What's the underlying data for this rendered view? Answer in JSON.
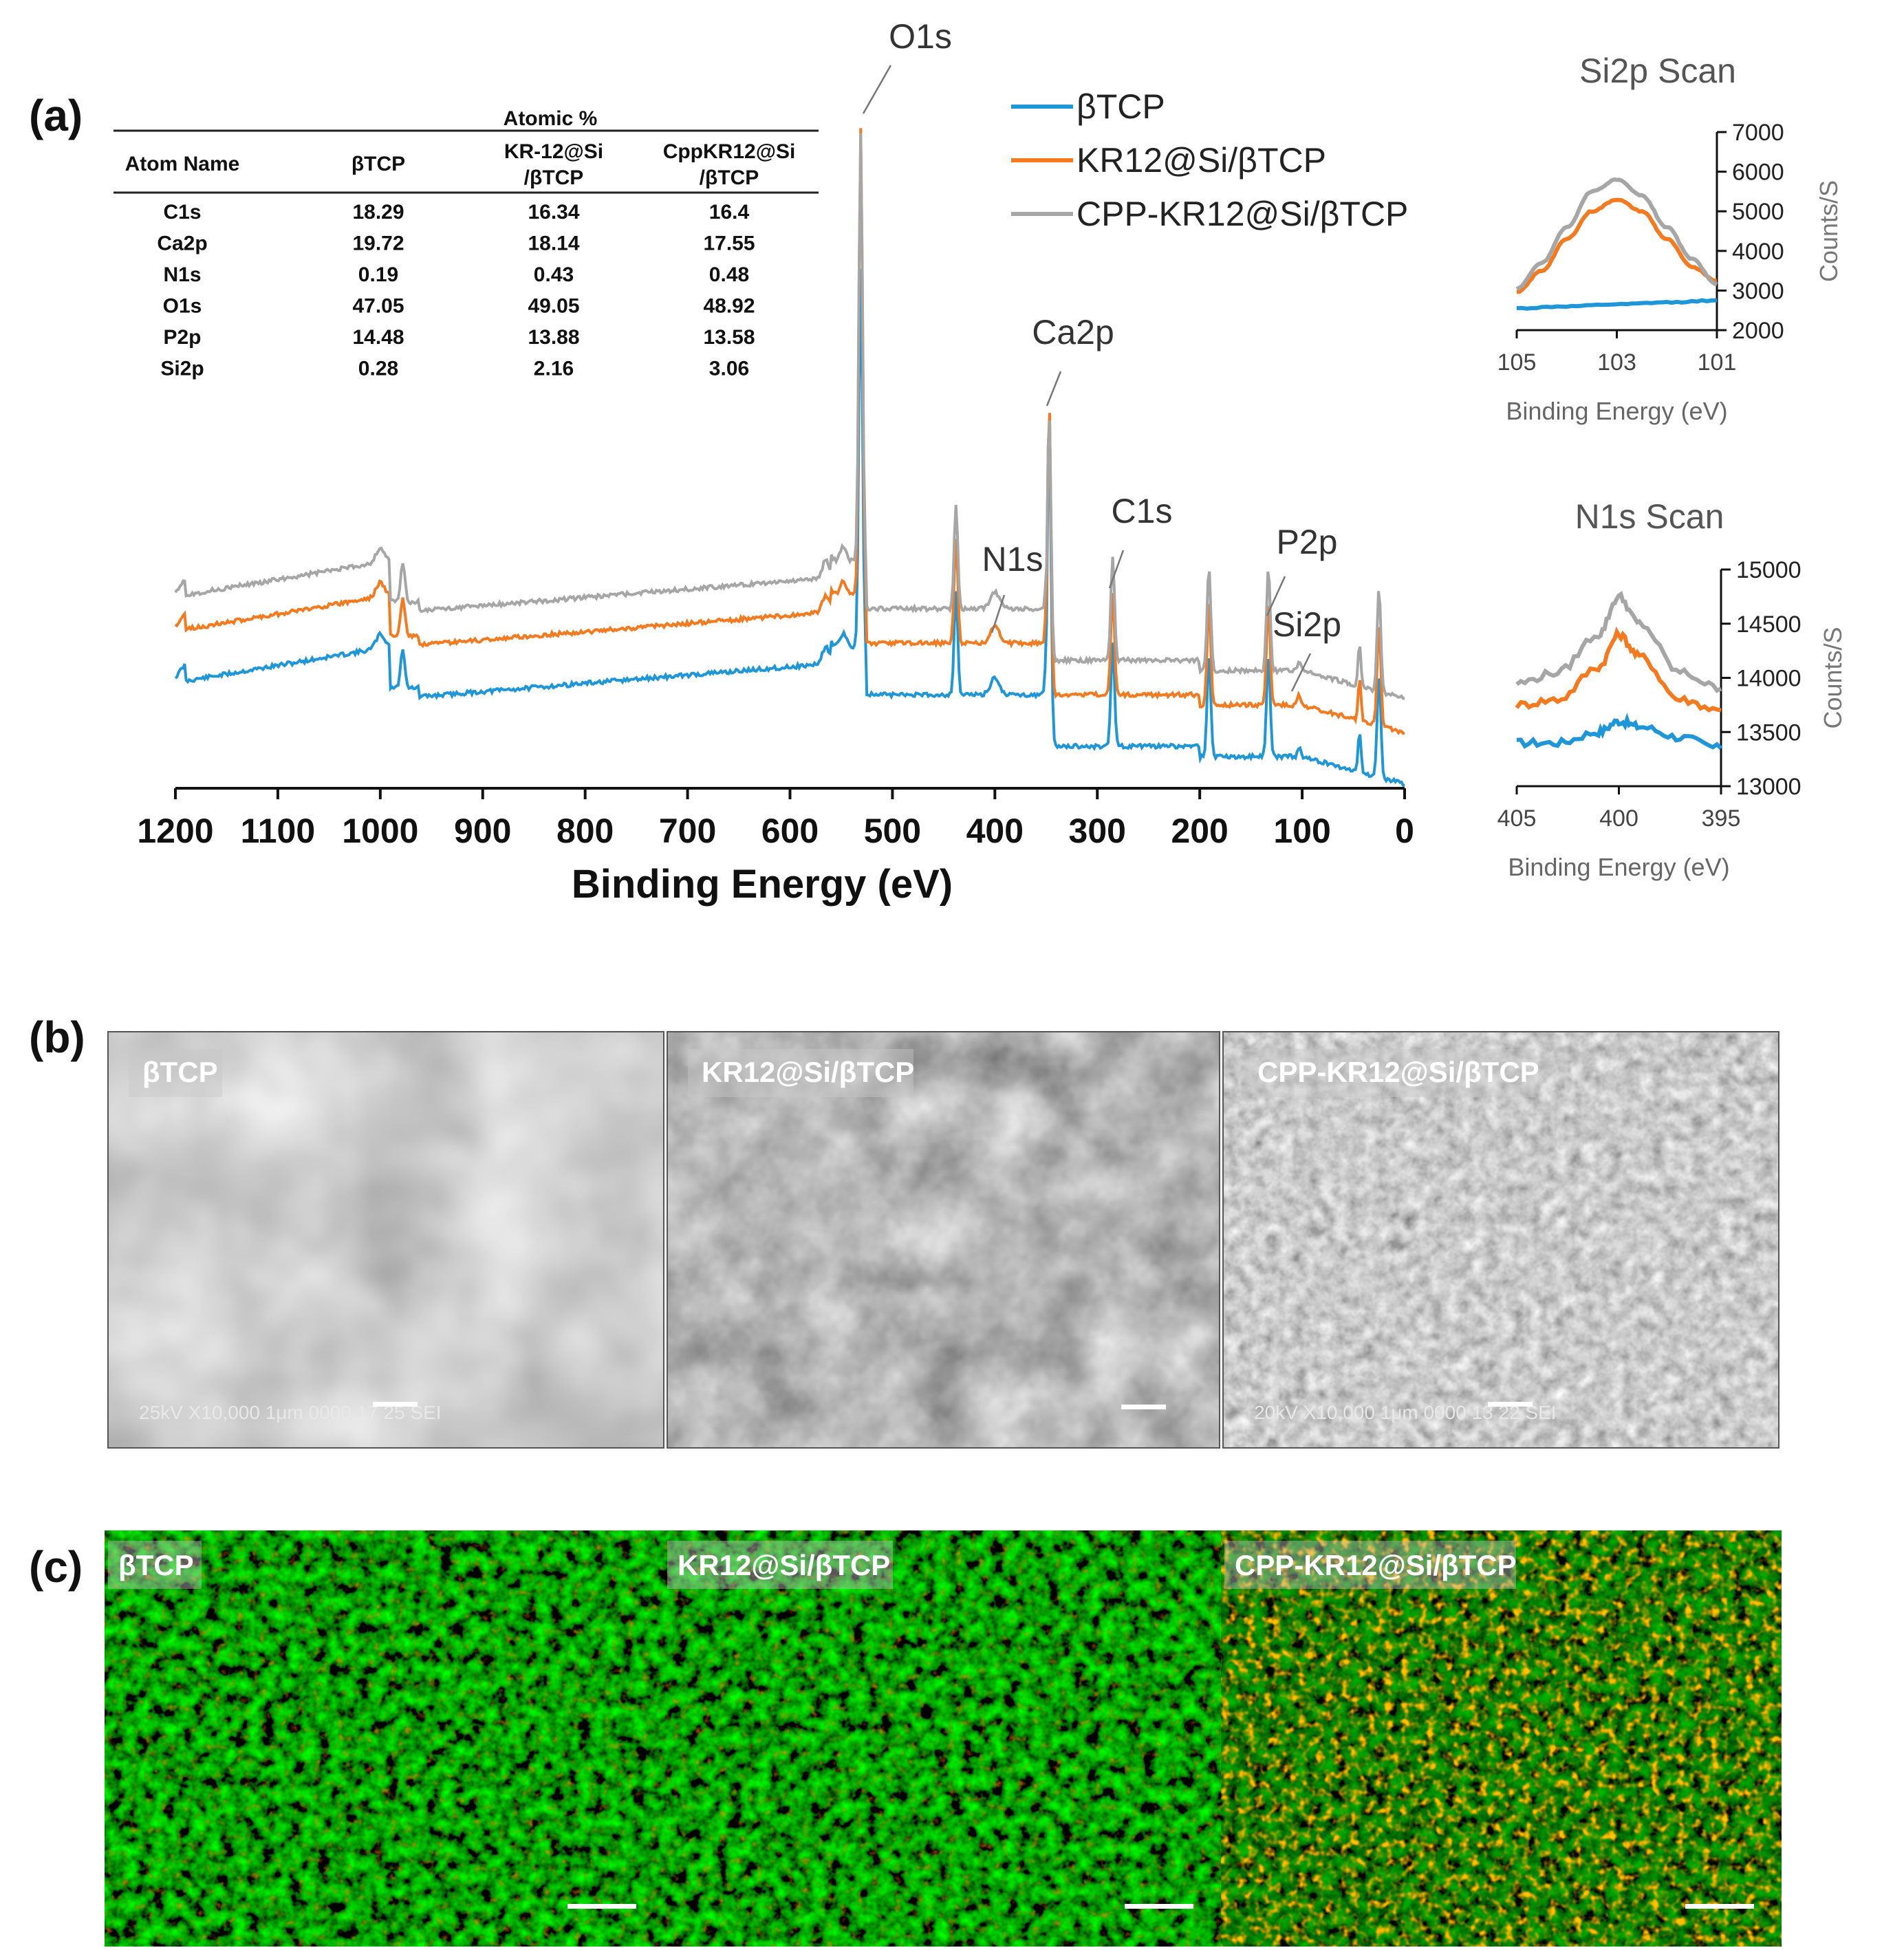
{
  "panels": {
    "a": "(a)",
    "b": "(b)",
    "c": "(c)"
  },
  "table": {
    "group_header": "Atomic %",
    "headers": [
      "Atom Name",
      "βTCP",
      "KR-12@Si\n/βTCP",
      "CppKR12@Si\n/βTCP"
    ],
    "rows": [
      [
        "C1s",
        "18.29",
        "16.34",
        "16.4"
      ],
      [
        "Ca2p",
        "19.72",
        "18.14",
        "17.55"
      ],
      [
        "N1s",
        "0.19",
        "0.43",
        "0.48"
      ],
      [
        "O1s",
        "47.05",
        "49.05",
        "48.92"
      ],
      [
        "P2p",
        "14.48",
        "13.88",
        "13.58"
      ],
      [
        "Si2p",
        "0.28",
        "2.16",
        "3.06"
      ]
    ]
  },
  "colors": {
    "btcp": "#1f96d8",
    "kr12": "#f47a20",
    "cpp": "#a6a6a6"
  },
  "chart_data": [
    {
      "type": "line",
      "xlabel": "Binding Energy (eV)",
      "ylabel": "",
      "xlim": [
        1200,
        0
      ],
      "x_reversed": true,
      "xticks": [
        1200,
        1100,
        1000,
        900,
        800,
        700,
        600,
        500,
        400,
        300,
        200,
        100,
        0
      ],
      "legend_position": "top-center",
      "series": [
        {
          "name": "βTCP",
          "color": "#1f96d8"
        },
        {
          "name": "KR12@Si/βTCP",
          "color": "#f47a20"
        },
        {
          "name": "CPP-KR12@Si/βTCP",
          "color": "#a6a6a6"
        }
      ],
      "peaks": [
        {
          "label": "O1s",
          "x": 531
        },
        {
          "label": "Ca2p",
          "x": 347
        },
        {
          "label": "N1s",
          "x": 400
        },
        {
          "label": "C1s",
          "x": 285
        },
        {
          "label": "P2p",
          "x": 133
        },
        {
          "label": "Si2p",
          "x": 103
        }
      ]
    },
    {
      "type": "line",
      "title": "Si2p Scan",
      "xlabel": "Binding Energy (eV)",
      "ylabel": "Counts/S",
      "xlim": [
        105,
        101
      ],
      "x_reversed": true,
      "ylim": [
        2000,
        7000
      ],
      "xticks": [
        "105",
        "103",
        "101"
      ],
      "yticks": [
        "2000",
        "3000",
        "4000",
        "5000",
        "6000",
        "7000"
      ],
      "series": [
        {
          "name": "βTCP",
          "x": [
            105,
            104,
            103,
            102,
            101
          ],
          "values": [
            2550,
            2600,
            2650,
            2700,
            2750
          ]
        },
        {
          "name": "KR12@Si/βTCP",
          "x": [
            105,
            104.5,
            104,
            103.5,
            103,
            102.5,
            102,
            101.5,
            101
          ],
          "values": [
            2950,
            3500,
            4300,
            5000,
            5300,
            5000,
            4300,
            3600,
            3250
          ]
        },
        {
          "name": "CPP-KR12@Si/βTCP",
          "x": [
            105,
            104.5,
            104,
            103.5,
            103,
            102.5,
            102,
            101.5,
            101
          ],
          "values": [
            3050,
            3700,
            4600,
            5500,
            5800,
            5400,
            4600,
            3800,
            3150
          ]
        }
      ]
    },
    {
      "type": "line",
      "title": "N1s Scan",
      "xlabel": "Binding Energy (eV)",
      "ylabel": "Counts/S",
      "xlim": [
        405,
        395
      ],
      "x_reversed": true,
      "ylim": [
        13000,
        15000
      ],
      "xticks": [
        "405",
        "400",
        "395"
      ],
      "yticks": [
        "13000",
        "13500",
        "14000",
        "14500",
        "15000"
      ],
      "series": [
        {
          "name": "βTCP",
          "x": [
            405,
            403,
            401,
            400,
            399,
            397,
            395
          ],
          "values": [
            13400,
            13400,
            13500,
            13600,
            13550,
            13450,
            13350
          ]
        },
        {
          "name": "KR12@Si/βTCP",
          "x": [
            405,
            403,
            401,
            400,
            399,
            397,
            395
          ],
          "values": [
            13750,
            13800,
            14100,
            14400,
            14200,
            13800,
            13700
          ]
        },
        {
          "name": "CPP-KR12@Si/βTCP",
          "x": [
            405,
            403,
            401,
            400,
            399,
            397,
            395
          ],
          "values": [
            13950,
            14050,
            14400,
            14750,
            14500,
            14050,
            13900
          ]
        }
      ]
    }
  ],
  "sem": {
    "images": [
      {
        "label": "βTCP",
        "caption": "25kV  X10,000    1μm  0000 17 25 SEI"
      },
      {
        "label": "KR12@Si/βTCP",
        "caption": ""
      },
      {
        "label": "CPP-KR12@Si/βTCP",
        "caption": "20kV  X10,000    1μm  0000 13 22 SEI"
      }
    ]
  },
  "fluor": {
    "images": [
      {
        "label": "βTCP"
      },
      {
        "label": "KR12@Si/βTCP"
      },
      {
        "label": "CPP-KR12@Si/βTCP"
      }
    ]
  }
}
